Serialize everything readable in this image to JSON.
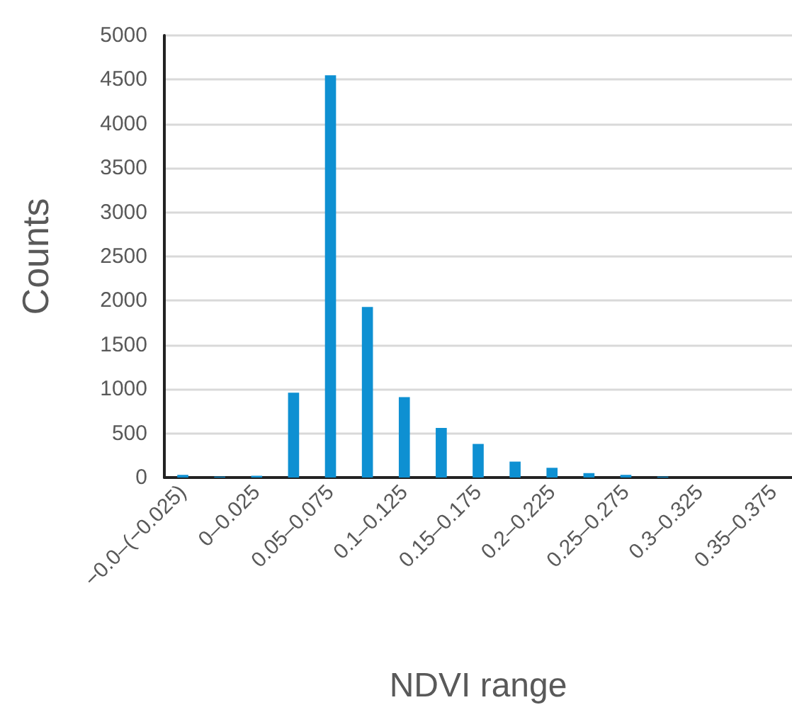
{
  "chart_data": {
    "type": "bar",
    "xlabel": "NDVI range",
    "ylabel": "Counts",
    "categories": [
      "−0.0–(−0.025)",
      null,
      "0–0.025",
      null,
      "0.05–0.075",
      null,
      "0.1–0.125",
      null,
      "0.15–0.175",
      null,
      "0.2–0.225",
      null,
      "0.25–0.275",
      null,
      "0.3–0.325",
      null,
      "0.35–0.375"
    ],
    "values": [
      30,
      10,
      20,
      960,
      4550,
      1930,
      910,
      560,
      380,
      180,
      110,
      50,
      30,
      10,
      0,
      0,
      0
    ],
    "color": "#0e90d2",
    "ylim": [
      0,
      5000
    ],
    "yticks": [
      0,
      500,
      1000,
      1500,
      2000,
      2500,
      3000,
      3500,
      4000,
      4500,
      5000
    ],
    "grid": "y"
  }
}
